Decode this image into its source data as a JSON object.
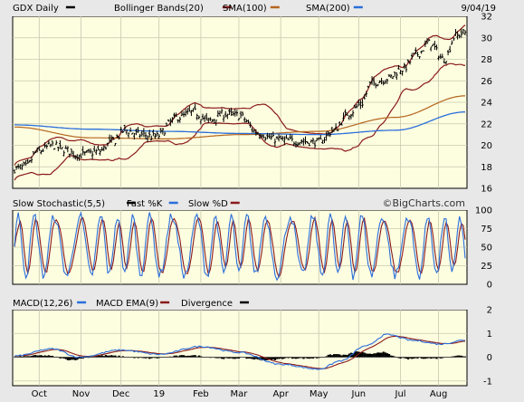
{
  "chart_data": [
    {
      "type": "line",
      "panel": "price",
      "title_items": [
        {
          "label": "GDX Daily",
          "color": "#000000"
        },
        {
          "label": "Bollinger Bands(20)",
          "color": "#8b1a1a"
        },
        {
          "label": "SMA(100)",
          "color": "#b5651d"
        },
        {
          "label": "SMA(200)",
          "color": "#2a6fdb"
        }
      ],
      "date_label": "9/04/19",
      "ylim": [
        16,
        32
      ],
      "yticks": [
        "32",
        "30",
        "28",
        "26",
        "24",
        "22",
        "20",
        "18",
        "16"
      ],
      "ytick_values": [
        32,
        30,
        28,
        26,
        24,
        22,
        20,
        18,
        16
      ],
      "x_months": [
        "Oct",
        "Nov",
        "Dec",
        "19",
        "Feb",
        "Mar",
        "Apr",
        "May",
        "Jun",
        "Jul",
        "Aug"
      ],
      "x_month_positions": [
        13,
        35,
        56,
        76,
        98,
        118,
        140,
        160,
        181,
        203,
        223
      ],
      "n_days": 238,
      "price_anchors": [
        [
          0,
          17.8
        ],
        [
          6,
          18.0
        ],
        [
          12,
          19.4
        ],
        [
          20,
          20.0
        ],
        [
          26,
          19.6
        ],
        [
          34,
          19.1
        ],
        [
          44,
          19.4
        ],
        [
          52,
          20.4
        ],
        [
          58,
          21.4
        ],
        [
          66,
          21.0
        ],
        [
          74,
          20.8
        ],
        [
          86,
          22.6
        ],
        [
          94,
          23.1
        ],
        [
          102,
          22.3
        ],
        [
          110,
          22.9
        ],
        [
          118,
          22.8
        ],
        [
          128,
          21.2
        ],
        [
          136,
          20.6
        ],
        [
          146,
          20.4
        ],
        [
          160,
          20.3
        ],
        [
          168,
          21.4
        ],
        [
          176,
          23.0
        ],
        [
          182,
          23.8
        ],
        [
          188,
          25.8
        ],
        [
          196,
          26.2
        ],
        [
          204,
          27.1
        ],
        [
          212,
          28.5
        ],
        [
          218,
          29.5
        ],
        [
          226,
          28.0
        ],
        [
          232,
          30.2
        ],
        [
          237,
          30.5
        ]
      ],
      "series": [
        {
          "name": "GDX Daily",
          "color": "#000000",
          "kind": "ohlc"
        },
        {
          "name": "Bollinger Bands(20)",
          "color": "#8b1a1a",
          "kind": "band"
        },
        {
          "name": "SMA(100)",
          "color": "#b5651d",
          "kind": "line"
        },
        {
          "name": "SMA(200)",
          "color": "#2a6fdb",
          "kind": "line"
        }
      ],
      "sma100_anchors": [
        [
          0,
          21.7
        ],
        [
          40,
          20.7
        ],
        [
          80,
          20.6
        ],
        [
          120,
          21.0
        ],
        [
          160,
          21.3
        ],
        [
          200,
          22.6
        ],
        [
          237,
          24.6
        ]
      ],
      "sma200_anchors": [
        [
          0,
          21.9
        ],
        [
          40,
          21.5
        ],
        [
          80,
          21.3
        ],
        [
          120,
          21.1
        ],
        [
          160,
          21.0
        ],
        [
          200,
          21.4
        ],
        [
          237,
          23.1
        ]
      ],
      "watermark": "©BigCharts.com"
    },
    {
      "type": "line",
      "panel": "stochastic",
      "title_items": [
        {
          "label": "Slow Stochastic(5,5)",
          "color": "#000000"
        },
        {
          "label": "Fast %K",
          "color": "#2a6fdb"
        },
        {
          "label": "Slow %D",
          "color": "#8b1a1a"
        }
      ],
      "ylim": [
        0,
        100
      ],
      "yticks": [
        "100",
        "75",
        "50",
        "25",
        "0"
      ],
      "ytick_values": [
        100,
        75,
        50,
        25,
        0
      ],
      "series": [
        {
          "name": "Fast %K",
          "color": "#2a6fdb"
        },
        {
          "name": "Slow %D",
          "color": "#8b1a1a"
        }
      ]
    },
    {
      "type": "line",
      "panel": "macd",
      "title_items": [
        {
          "label": "MACD(12,26)",
          "color": "#2a6fdb"
        },
        {
          "label": "MACD EMA(9)",
          "color": "#8b1a1a"
        },
        {
          "label": "Divergence",
          "color": "#000000"
        }
      ],
      "ylim": [
        -1.2,
        2
      ],
      "yticks": [
        "2",
        "1",
        "0",
        "-1"
      ],
      "ytick_values": [
        2,
        1,
        0,
        -1
      ],
      "macd_anchors": [
        [
          0,
          0.05
        ],
        [
          20,
          0.35
        ],
        [
          34,
          0.0
        ],
        [
          56,
          0.3
        ],
        [
          76,
          0.12
        ],
        [
          98,
          0.45
        ],
        [
          118,
          0.2
        ],
        [
          140,
          -0.3
        ],
        [
          160,
          -0.5
        ],
        [
          172,
          -0.15
        ],
        [
          184,
          0.45
        ],
        [
          196,
          0.95
        ],
        [
          210,
          0.7
        ],
        [
          224,
          0.55
        ],
        [
          237,
          0.72
        ]
      ],
      "series": [
        {
          "name": "MACD(12,26)",
          "color": "#2a6fdb"
        },
        {
          "name": "MACD EMA(9)",
          "color": "#8b1a1a"
        },
        {
          "name": "Divergence",
          "color": "#000000"
        }
      ]
    }
  ]
}
